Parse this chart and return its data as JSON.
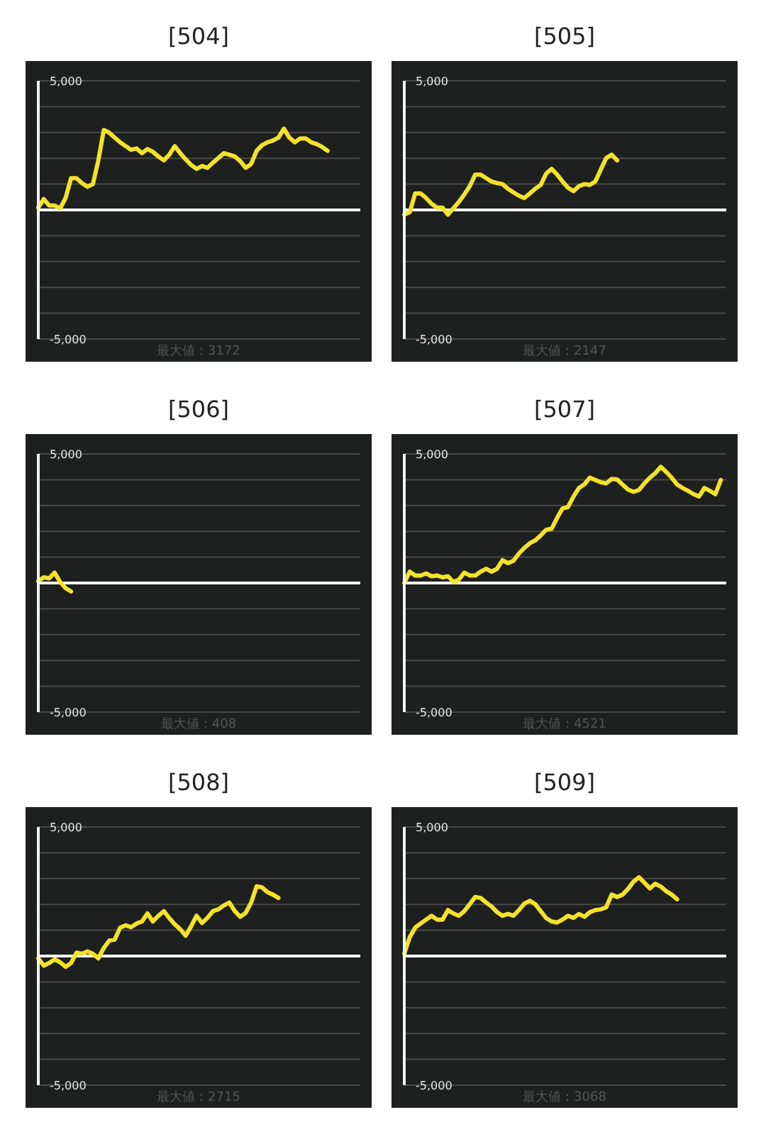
{
  "chart_data": [
    {
      "type": "line",
      "title": "[504]",
      "categories": [
        null,
        null,
        null,
        null,
        null,
        null,
        null,
        null,
        null,
        null,
        null,
        null,
        null,
        null,
        null,
        null,
        null,
        null,
        null,
        null,
        null,
        null,
        null,
        null,
        null,
        null,
        null,
        null,
        null,
        null,
        null,
        null,
        null,
        null,
        null,
        null,
        null,
        null,
        null,
        null,
        null,
        null,
        null,
        null,
        null,
        null,
        null,
        null,
        null,
        null,
        null,
        null,
        null,
        null,
        null,
        null,
        null,
        null,
        null,
        null
      ],
      "series": [
        {
          "color": "#f2e22a",
          "values": [
            90,
            420,
            170,
            170,
            60,
            460,
            1230,
            1230,
            1040,
            900,
            1000,
            1920,
            3100,
            2990,
            2800,
            2620,
            2470,
            2330,
            2380,
            2200,
            2360,
            2250,
            2070,
            1920,
            2140,
            2470,
            2200,
            1960,
            1740,
            1590,
            1700,
            1630,
            1830,
            2010,
            2200,
            2140,
            2070,
            1890,
            1630,
            1780,
            2290,
            2510,
            2620,
            2690,
            2800,
            3150,
            2800,
            2620,
            2770,
            2770,
            2620,
            2550,
            2440,
            2290,
            null,
            null,
            null,
            null,
            null,
            null
          ]
        }
      ],
      "ylim": [
        -5000,
        5000
      ],
      "yticks": [
        {
          "value": -5000,
          "label": "-5,000"
        },
        {
          "value": -4000,
          "label": null
        },
        {
          "value": -3000,
          "label": null
        },
        {
          "value": -2000,
          "label": null
        },
        {
          "value": -1000,
          "label": null
        },
        {
          "value": 0,
          "label": null
        },
        {
          "value": 1000,
          "label": null
        },
        {
          "value": 2000,
          "label": null
        },
        {
          "value": 3000,
          "label": null
        },
        {
          "value": 4000,
          "label": null
        },
        {
          "value": 5000,
          "label": "5,000"
        }
      ],
      "grid": "y",
      "tick_labels": "y",
      "marker": "none",
      "line_style": "solid",
      "ref_lines": [
        {
          "axis": "y",
          "value": 0,
          "color": "#ffffff"
        }
      ],
      "annotations": [
        "最大値：3172"
      ]
    },
    {
      "type": "line",
      "title": "[505]",
      "categories": [
        null,
        null,
        null,
        null,
        null,
        null,
        null,
        null,
        null,
        null,
        null,
        null,
        null,
        null,
        null,
        null,
        null,
        null,
        null,
        null,
        null,
        null,
        null,
        null,
        null,
        null,
        null,
        null,
        null,
        null,
        null,
        null,
        null,
        null,
        null,
        null,
        null,
        null,
        null,
        null,
        null,
        null,
        null,
        null,
        null,
        null,
        null,
        null,
        null,
        null,
        null,
        null,
        null,
        null,
        null,
        null,
        null,
        null,
        null,
        null
      ],
      "series": [
        {
          "color": "#f2e22a",
          "values": [
            -180,
            -90,
            640,
            640,
            460,
            240,
            90,
            90,
            -180,
            60,
            310,
            600,
            920,
            1370,
            1370,
            1230,
            1100,
            1040,
            1000,
            820,
            680,
            550,
            460,
            640,
            820,
            970,
            1410,
            1590,
            1370,
            1100,
            860,
            730,
            920,
            1000,
            970,
            1100,
            1560,
            2010,
            2140,
            1920,
            null,
            null,
            null,
            null,
            null,
            null,
            null,
            null,
            null,
            null,
            null,
            null,
            null,
            null,
            null,
            null,
            null,
            null,
            null,
            null
          ]
        }
      ],
      "ylim": [
        -5000,
        5000
      ],
      "yticks": [
        {
          "value": -5000,
          "label": "-5,000"
        },
        {
          "value": -4000,
          "label": null
        },
        {
          "value": -3000,
          "label": null
        },
        {
          "value": -2000,
          "label": null
        },
        {
          "value": -1000,
          "label": null
        },
        {
          "value": 0,
          "label": null
        },
        {
          "value": 1000,
          "label": null
        },
        {
          "value": 2000,
          "label": null
        },
        {
          "value": 3000,
          "label": null
        },
        {
          "value": 4000,
          "label": null
        },
        {
          "value": 5000,
          "label": "5,000"
        }
      ],
      "grid": "y",
      "tick_labels": "y",
      "marker": "none",
      "line_style": "solid",
      "ref_lines": [
        {
          "axis": "y",
          "value": 0,
          "color": "#ffffff"
        }
      ],
      "annotations": [
        "最大値：2147"
      ]
    },
    {
      "type": "line",
      "title": "[506]",
      "categories": [
        null,
        null,
        null,
        null,
        null,
        null,
        null,
        null,
        null,
        null,
        null,
        null,
        null,
        null,
        null,
        null,
        null,
        null,
        null,
        null,
        null,
        null,
        null,
        null,
        null,
        null,
        null,
        null,
        null,
        null,
        null,
        null,
        null,
        null,
        null,
        null,
        null,
        null,
        null,
        null,
        null,
        null,
        null,
        null,
        null,
        null,
        null,
        null,
        null,
        null,
        null,
        null,
        null,
        null,
        null,
        null,
        null,
        null,
        null,
        null
      ],
      "series": [
        {
          "color": "#f2e22a",
          "values": [
            70,
            220,
            180,
            400,
            40,
            -200,
            -330,
            null,
            null,
            null,
            null,
            null,
            null,
            null,
            null,
            null,
            null,
            null,
            null,
            null,
            null,
            null,
            null,
            null,
            null,
            null,
            null,
            null,
            null,
            null,
            null,
            null,
            null,
            null,
            null,
            null,
            null,
            null,
            null,
            null,
            null,
            null,
            null,
            null,
            null,
            null,
            null,
            null,
            null,
            null,
            null,
            null,
            null,
            null,
            null,
            null,
            null,
            null,
            null,
            null
          ]
        }
      ],
      "ylim": [
        -5000,
        5000
      ],
      "yticks": [
        {
          "value": -5000,
          "label": "-5,000"
        },
        {
          "value": -4000,
          "label": null
        },
        {
          "value": -3000,
          "label": null
        },
        {
          "value": -2000,
          "label": null
        },
        {
          "value": -1000,
          "label": null
        },
        {
          "value": 0,
          "label": null
        },
        {
          "value": 1000,
          "label": null
        },
        {
          "value": 2000,
          "label": null
        },
        {
          "value": 3000,
          "label": null
        },
        {
          "value": 4000,
          "label": null
        },
        {
          "value": 5000,
          "label": "5,000"
        }
      ],
      "grid": "y",
      "tick_labels": "y",
      "marker": "none",
      "line_style": "solid",
      "ref_lines": [
        {
          "axis": "y",
          "value": 0,
          "color": "#ffffff"
        }
      ],
      "annotations": [
        "最大値：408"
      ]
    },
    {
      "type": "line",
      "title": "[507]",
      "categories": [
        null,
        null,
        null,
        null,
        null,
        null,
        null,
        null,
        null,
        null,
        null,
        null,
        null,
        null,
        null,
        null,
        null,
        null,
        null,
        null,
        null,
        null,
        null,
        null,
        null,
        null,
        null,
        null,
        null,
        null,
        null,
        null,
        null,
        null,
        null,
        null,
        null,
        null,
        null,
        null,
        null,
        null,
        null,
        null,
        null,
        null,
        null,
        null,
        null,
        null,
        null,
        null,
        null,
        null,
        null,
        null,
        null,
        null,
        null,
        null
      ],
      "series": [
        {
          "color": "#f2e22a",
          "values": [
            0,
            440,
            290,
            290,
            370,
            260,
            290,
            220,
            260,
            40,
            130,
            400,
            290,
            290,
            440,
            550,
            440,
            550,
            880,
            770,
            860,
            1140,
            1360,
            1540,
            1650,
            1840,
            2060,
            2100,
            2520,
            2890,
            2940,
            3350,
            3680,
            3820,
            4080,
            3990,
            3900,
            3860,
            4030,
            4010,
            3810,
            3620,
            3530,
            3600,
            3860,
            4080,
            4260,
            4500,
            4300,
            4080,
            3810,
            3680,
            3570,
            3440,
            3350,
            3680,
            3570,
            3440,
            3990,
            null
          ]
        }
      ],
      "ylim": [
        -5000,
        5000
      ],
      "yticks": [
        {
          "value": -5000,
          "label": "-5,000"
        },
        {
          "value": -4000,
          "label": null
        },
        {
          "value": -3000,
          "label": null
        },
        {
          "value": -2000,
          "label": null
        },
        {
          "value": -1000,
          "label": null
        },
        {
          "value": 0,
          "label": null
        },
        {
          "value": 1000,
          "label": null
        },
        {
          "value": 2000,
          "label": null
        },
        {
          "value": 3000,
          "label": null
        },
        {
          "value": 4000,
          "label": null
        },
        {
          "value": 5000,
          "label": "5,000"
        }
      ],
      "grid": "y",
      "tick_labels": "y",
      "marker": "none",
      "line_style": "solid",
      "ref_lines": [
        {
          "axis": "y",
          "value": 0,
          "color": "#ffffff"
        }
      ],
      "annotations": [
        "最大値：4521"
      ]
    },
    {
      "type": "line",
      "title": "[508]",
      "categories": [
        null,
        null,
        null,
        null,
        null,
        null,
        null,
        null,
        null,
        null,
        null,
        null,
        null,
        null,
        null,
        null,
        null,
        null,
        null,
        null,
        null,
        null,
        null,
        null,
        null,
        null,
        null,
        null,
        null,
        null,
        null,
        null,
        null,
        null,
        null,
        null,
        null,
        null,
        null,
        null,
        null,
        null,
        null,
        null,
        null,
        null,
        null,
        null,
        null,
        null,
        null,
        null,
        null,
        null,
        null,
        null,
        null,
        null,
        null,
        null
      ],
      "series": [
        {
          "color": "#f2e22a",
          "values": [
            -90,
            -370,
            -270,
            -130,
            -240,
            -420,
            -270,
            130,
            90,
            180,
            90,
            -90,
            310,
            600,
            640,
            1100,
            1190,
            1120,
            1260,
            1340,
            1650,
            1340,
            1560,
            1740,
            1470,
            1230,
            1040,
            790,
            1150,
            1560,
            1280,
            1480,
            1740,
            1810,
            1960,
            2070,
            1740,
            1520,
            1670,
            2070,
            2700,
            2660,
            2470,
            2380,
            2250,
            null,
            null,
            null,
            null,
            null,
            null,
            null,
            null,
            null,
            null,
            null,
            null,
            null,
            null,
            null
          ]
        }
      ],
      "ylim": [
        -5000,
        5000
      ],
      "yticks": [
        {
          "value": -5000,
          "label": "-5,000"
        },
        {
          "value": -4000,
          "label": null
        },
        {
          "value": -3000,
          "label": null
        },
        {
          "value": -2000,
          "label": null
        },
        {
          "value": -1000,
          "label": null
        },
        {
          "value": 0,
          "label": null
        },
        {
          "value": 1000,
          "label": null
        },
        {
          "value": 2000,
          "label": null
        },
        {
          "value": 3000,
          "label": null
        },
        {
          "value": 4000,
          "label": null
        },
        {
          "value": 5000,
          "label": "5,000"
        }
      ],
      "grid": "y",
      "tick_labels": "y",
      "marker": "none",
      "line_style": "solid",
      "ref_lines": [
        {
          "axis": "y",
          "value": 0,
          "color": "#ffffff"
        }
      ],
      "annotations": [
        "最大値：2715"
      ]
    },
    {
      "type": "line",
      "title": "[509]",
      "categories": [
        null,
        null,
        null,
        null,
        null,
        null,
        null,
        null,
        null,
        null,
        null,
        null,
        null,
        null,
        null,
        null,
        null,
        null,
        null,
        null,
        null,
        null,
        null,
        null,
        null,
        null,
        null,
        null,
        null,
        null,
        null,
        null,
        null,
        null,
        null,
        null,
        null,
        null,
        null,
        null,
        null,
        null,
        null,
        null,
        null,
        null,
        null,
        null,
        null,
        null,
        null,
        null,
        null,
        null,
        null,
        null,
        null,
        null,
        null,
        null
      ],
      "series": [
        {
          "color": "#f2e22a",
          "values": [
            90,
            730,
            1100,
            1260,
            1410,
            1560,
            1410,
            1410,
            1780,
            1650,
            1560,
            1740,
            2010,
            2290,
            2250,
            2070,
            1920,
            1700,
            1560,
            1630,
            1560,
            1780,
            2030,
            2140,
            2010,
            1740,
            1470,
            1340,
            1300,
            1410,
            1560,
            1480,
            1630,
            1520,
            1700,
            1780,
            1810,
            1890,
            2380,
            2290,
            2380,
            2600,
            2880,
            3050,
            2840,
            2620,
            2800,
            2690,
            2510,
            2380,
            2200,
            null,
            null,
            null,
            null,
            null,
            null,
            null,
            null,
            null
          ]
        }
      ],
      "ylim": [
        -5000,
        5000
      ],
      "yticks": [
        {
          "value": -5000,
          "label": "-5,000"
        },
        {
          "value": -4000,
          "label": null
        },
        {
          "value": -3000,
          "label": null
        },
        {
          "value": -2000,
          "label": null
        },
        {
          "value": -1000,
          "label": null
        },
        {
          "value": 0,
          "label": null
        },
        {
          "value": 1000,
          "label": null
        },
        {
          "value": 2000,
          "label": null
        },
        {
          "value": 3000,
          "label": null
        },
        {
          "value": 4000,
          "label": null
        },
        {
          "value": 5000,
          "label": "5,000"
        }
      ],
      "grid": "y",
      "tick_labels": "y",
      "marker": "none",
      "line_style": "solid",
      "ref_lines": [
        {
          "axis": "y",
          "value": 0,
          "color": "#ffffff"
        }
      ],
      "annotations": [
        "最大値：3068"
      ]
    }
  ]
}
